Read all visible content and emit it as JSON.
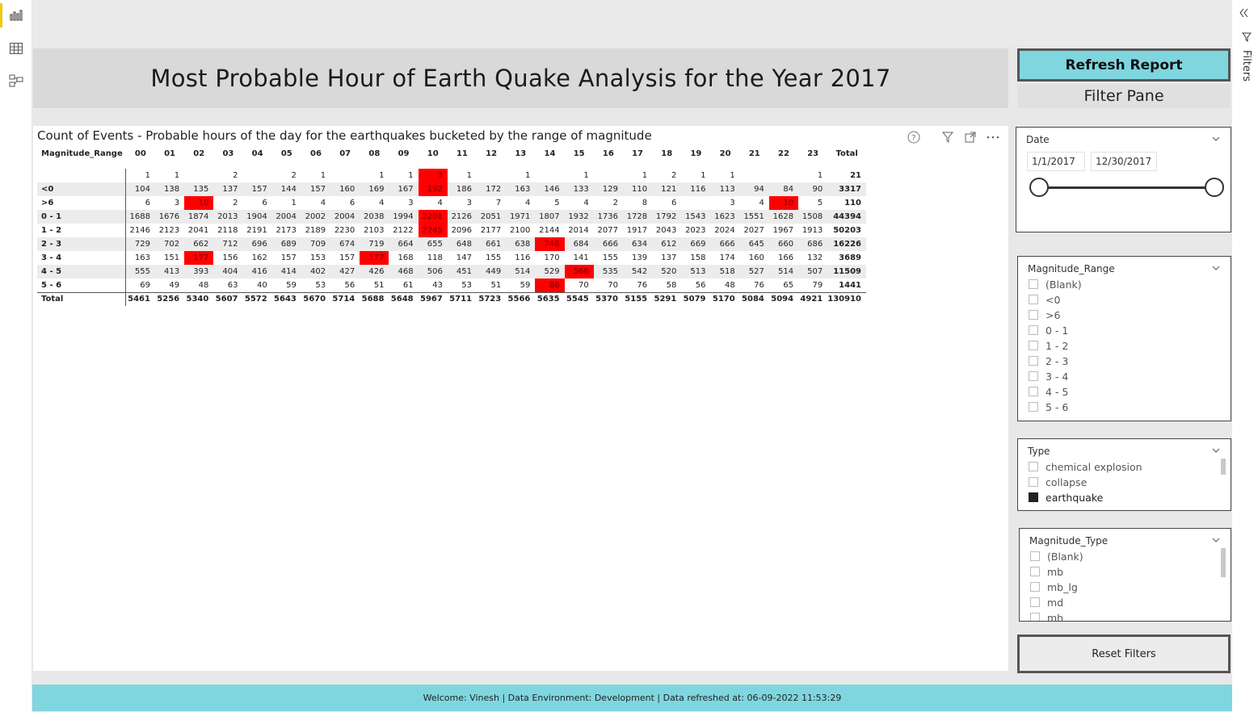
{
  "report": {
    "title": "Most Probable Hour of Earth Quake Analysis for the Year 2017",
    "refresh_label": "Refresh Report",
    "filter_pane_label": "Filter Pane",
    "reset_label": "Reset Filters",
    "footer": "Welcome: Vinesh | Data Environment: Development | Data refreshed at: 06-09-2022 11:53:29",
    "filters_rail_label": "Filters"
  },
  "nav": {
    "items": [
      "report-view-icon",
      "data-view-icon",
      "model-view-icon"
    ]
  },
  "visual": {
    "title": "Count of Events - Probable hours of the day for the earthquakes bucketed by the range of magnitude",
    "icons": [
      "help-icon",
      "filter-icon",
      "focus-mode-icon",
      "more-options-icon"
    ]
  },
  "matrix": {
    "row_header": "Magnitude_Range",
    "columns": [
      "00",
      "01",
      "02",
      "03",
      "04",
      "05",
      "06",
      "07",
      "08",
      "09",
      "10",
      "11",
      "12",
      "13",
      "14",
      "15",
      "16",
      "17",
      "18",
      "19",
      "20",
      "21",
      "22",
      "23",
      "Total"
    ],
    "rows": [
      {
        "label": "",
        "values": [
          "1",
          "1",
          "",
          "2",
          "",
          "2",
          "1",
          "",
          "1",
          "1",
          "3",
          "1",
          "",
          "1",
          "",
          "1",
          "",
          "1",
          "2",
          "1",
          "1",
          "",
          "",
          "1"
        ],
        "total": "21",
        "hot": 10
      },
      {
        "label": "<0",
        "values": [
          "104",
          "138",
          "135",
          "137",
          "157",
          "144",
          "157",
          "160",
          "169",
          "167",
          "192",
          "186",
          "172",
          "163",
          "146",
          "133",
          "129",
          "110",
          "121",
          "116",
          "113",
          "94",
          "84",
          "90"
        ],
        "total": "3317",
        "hot": 10
      },
      {
        "label": ">6",
        "values": [
          "6",
          "3",
          "10",
          "2",
          "6",
          "1",
          "4",
          "6",
          "4",
          "3",
          "4",
          "3",
          "7",
          "4",
          "5",
          "4",
          "2",
          "8",
          "6",
          "",
          "3",
          "4",
          "10",
          "5"
        ],
        "total": "110",
        "hot": [
          2,
          22
        ]
      },
      {
        "label": "0 - 1",
        "values": [
          "1688",
          "1676",
          "1874",
          "2013",
          "1904",
          "2004",
          "2002",
          "2004",
          "2038",
          "1994",
          "2201",
          "2126",
          "2051",
          "1971",
          "1807",
          "1932",
          "1736",
          "1728",
          "1792",
          "1543",
          "1623",
          "1551",
          "1628",
          "1508"
        ],
        "total": "44394",
        "hot": 10
      },
      {
        "label": "1 - 2",
        "values": [
          "2146",
          "2123",
          "2041",
          "2118",
          "2191",
          "2173",
          "2189",
          "2230",
          "2103",
          "2122",
          "2245",
          "2096",
          "2177",
          "2100",
          "2144",
          "2014",
          "2077",
          "1917",
          "2043",
          "2023",
          "2024",
          "2027",
          "1967",
          "1913"
        ],
        "total": "50203",
        "hot": 10
      },
      {
        "label": "2 - 3",
        "values": [
          "729",
          "702",
          "662",
          "712",
          "696",
          "689",
          "709",
          "674",
          "719",
          "664",
          "655",
          "648",
          "661",
          "638",
          "746",
          "684",
          "666",
          "634",
          "612",
          "669",
          "666",
          "645",
          "660",
          "686"
        ],
        "total": "16226",
        "hot": 14
      },
      {
        "label": "3 - 4",
        "values": [
          "163",
          "151",
          "177",
          "156",
          "162",
          "157",
          "153",
          "157",
          "177",
          "168",
          "118",
          "147",
          "155",
          "116",
          "170",
          "141",
          "155",
          "139",
          "137",
          "158",
          "174",
          "160",
          "166",
          "132"
        ],
        "total": "3689",
        "hot": [
          2,
          8
        ]
      },
      {
        "label": "4 - 5",
        "values": [
          "555",
          "413",
          "393",
          "404",
          "416",
          "414",
          "402",
          "427",
          "426",
          "468",
          "506",
          "451",
          "449",
          "514",
          "529",
          "566",
          "535",
          "542",
          "520",
          "513",
          "518",
          "527",
          "514",
          "507"
        ],
        "total": "11509",
        "hot": 15
      },
      {
        "label": "5 - 6",
        "values": [
          "69",
          "49",
          "48",
          "63",
          "40",
          "59",
          "53",
          "56",
          "51",
          "61",
          "43",
          "53",
          "51",
          "59",
          "88",
          "70",
          "70",
          "76",
          "58",
          "56",
          "48",
          "76",
          "65",
          "79"
        ],
        "total": "1441",
        "hot": 14
      }
    ],
    "total_row": {
      "label": "Total",
      "values": [
        "5461",
        "5256",
        "5340",
        "5607",
        "5572",
        "5643",
        "5670",
        "5714",
        "5688",
        "5648",
        "5967",
        "5711",
        "5723",
        "5566",
        "5635",
        "5545",
        "5370",
        "5155",
        "5291",
        "5079",
        "5170",
        "5084",
        "5094",
        "4921"
      ],
      "total": "130910"
    },
    "colors": {
      "highlight": "#ff0000",
      "band": "#ececec"
    }
  },
  "slicers": {
    "date": {
      "header": "Date",
      "start": "1/1/2017",
      "end": "12/30/2017"
    },
    "magnitude_range": {
      "header": "Magnitude_Range",
      "options": [
        "(Blank)",
        "<0",
        ">6",
        "0 - 1",
        "1 - 2",
        "2 - 3",
        "3 - 4",
        "4 - 5",
        "5 - 6"
      ]
    },
    "type": {
      "header": "Type",
      "options": [
        "chemical explosion",
        "collapse",
        "earthquake"
      ],
      "checked": "earthquake"
    },
    "magnitude_type": {
      "header": "Magnitude_Type",
      "options": [
        "(Blank)",
        "mb",
        "mb_lg",
        "md",
        "mh"
      ]
    }
  },
  "colors": {
    "accent": "#7fd6df",
    "nav_active": "#f2c811"
  }
}
